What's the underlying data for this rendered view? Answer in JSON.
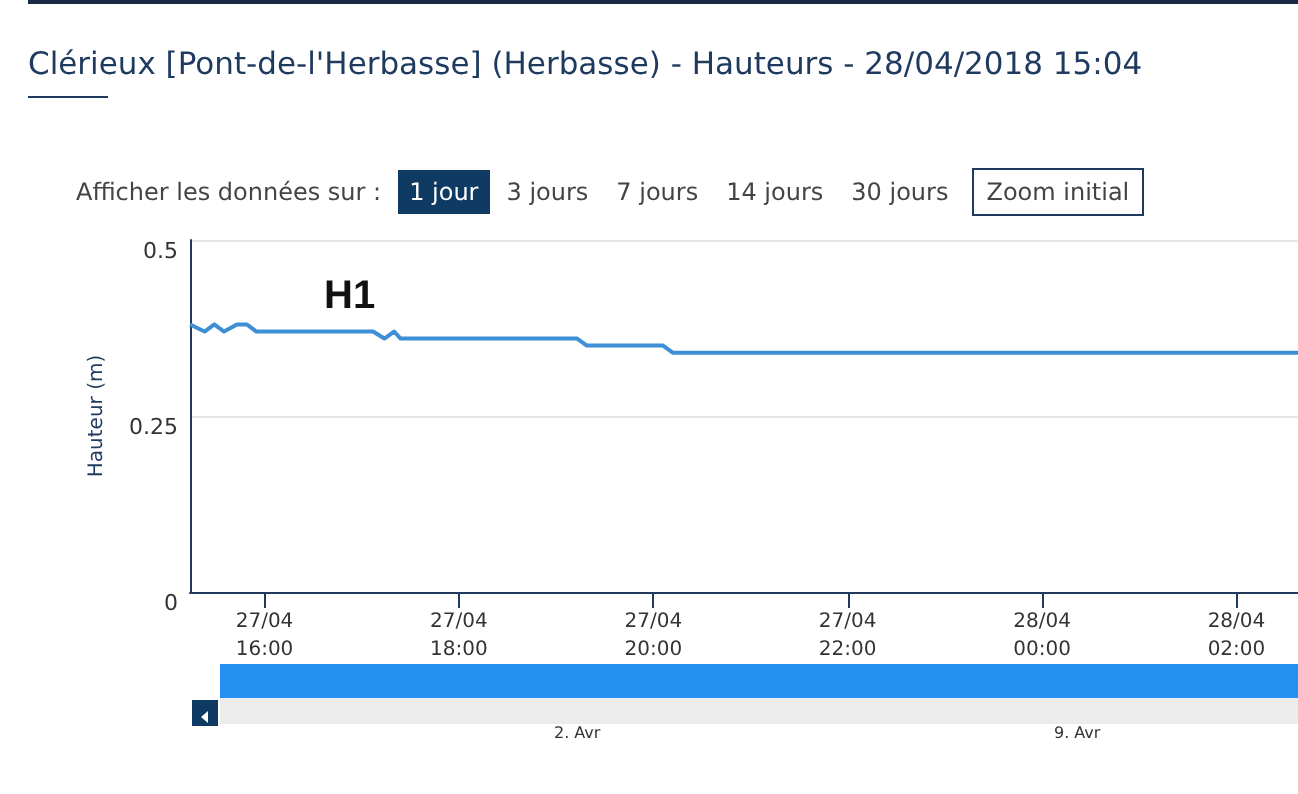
{
  "chart_data": {
    "type": "line",
    "title": "Clérieux [Pont-de-l'Herbasse] (Herbasse) - Hauteurs - 28/04/2018 15:04",
    "ylabel": "Hauteur (m)",
    "annotations": [
      "Afficher les données sur :",
      "1 jour",
      "3 jours",
      "7 jours",
      "14 jours",
      "30 jours",
      "Zoom initial",
      "2. Avr",
      "9. Avr",
      "H1"
    ],
    "x": [
      "2018-04-27T15:14",
      "2018-04-27T15:23",
      "2018-04-27T15:29",
      "2018-04-27T15:35",
      "2018-04-27T15:43",
      "2018-04-27T15:49",
      "2018-04-27T15:55",
      "2018-04-27T17:07",
      "2018-04-27T17:14",
      "2018-04-27T17:20",
      "2018-04-27T17:24",
      "2018-04-27T19:13",
      "2018-04-27T19:19",
      "2018-04-27T20:06",
      "2018-04-27T20:12",
      "2018-04-28T02:38"
    ],
    "series": [
      {
        "color": "#3d8fd6",
        "values": [
          0.38,
          0.37,
          0.38,
          0.37,
          0.38,
          0.38,
          0.37,
          0.37,
          0.36,
          0.37,
          0.36,
          0.36,
          0.35,
          0.35,
          0.34,
          0.34
        ]
      }
    ],
    "xlim": [
      "2018-04-27T15:14",
      "2018-04-28T02:38"
    ],
    "xticks": [
      {
        "value": "2018-04-27T16:00",
        "label": "27/04\n16:00"
      },
      {
        "value": "2018-04-27T18:00",
        "label": "27/04\n18:00"
      },
      {
        "value": "2018-04-27T20:00",
        "label": "27/04\n20:00"
      },
      {
        "value": "2018-04-27T22:00",
        "label": "27/04\n22:00"
      },
      {
        "value": "2018-04-28T00:00",
        "label": "28/04\n00:00"
      },
      {
        "value": "2018-04-28T02:00",
        "label": "28/04\n02:00"
      }
    ],
    "ylim": [
      0,
      0.5
    ],
    "yticks": [
      0,
      0.25,
      0.5
    ],
    "grid": "y",
    "marker": "none",
    "line_style": "solid"
  }
}
